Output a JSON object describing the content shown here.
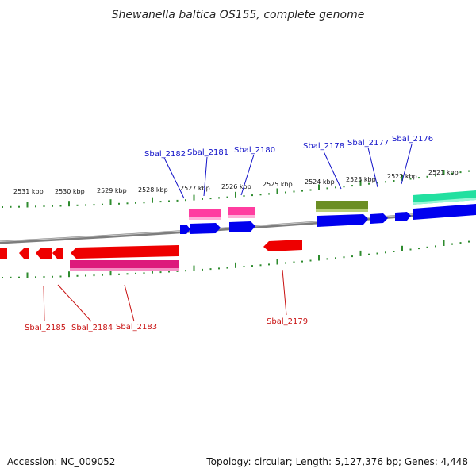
{
  "title": "Shewanella baltica OS155, complete genome",
  "footer": {
    "accession": "Accession: NC_009052",
    "topology": "Topology: circular; Length: 5,127,376 bp; Genes: 4,448"
  },
  "colors": {
    "backbone": "#8a8a8a",
    "tick": "#2e8b2e",
    "top_label": "#1010c8",
    "bottom_label": "#c81010",
    "cds_forward": "#0000ee",
    "cds_reverse": "#ee0000",
    "feature_pink": "#ff3399",
    "feature_magenta": "#dd1177",
    "feature_olive": "#6b8e23",
    "feature_teal": "#22dd99"
  },
  "kbp_labels": [
    "2531 kbp",
    "2530 kbp",
    "2529 kbp",
    "2528 kbp",
    "2527 kbp",
    "2526 kbp",
    "2525 kbp",
    "2524 kbp",
    "2523 kbp",
    "2522 kbp",
    "2521 kbp"
  ],
  "top_gene_labels": [
    "Sbal_2182",
    "Sbal_2181",
    "Sbal_2180",
    "Sbal_2178",
    "Sbal_2177",
    "Sbal_2176"
  ],
  "bottom_gene_labels": [
    "Sbal_2185",
    "Sbal_2184",
    "Sbal_2183",
    "Sbal_2179"
  ]
}
